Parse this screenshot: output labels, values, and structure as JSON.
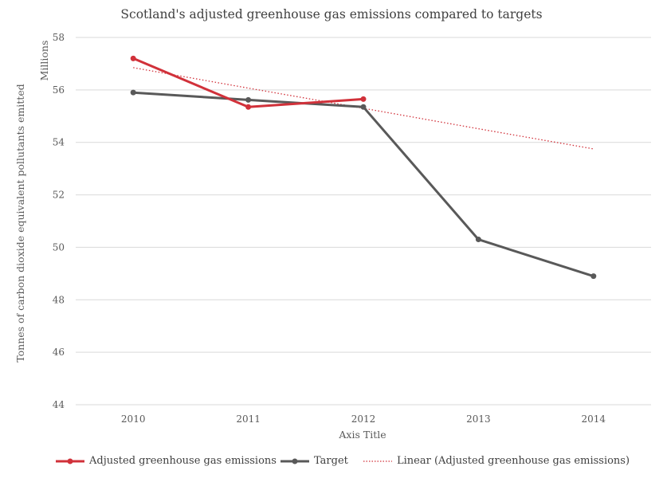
{
  "chart_data": {
    "type": "line",
    "title": "Scotland's adjusted greenhouse gas emissions compared to targets",
    "xlabel": "Axis Title",
    "ylabel": "Tonnes of carbon dioxide equivalent pollutants emitted",
    "y_units_label": "Millions",
    "categories": [
      "2010",
      "2011",
      "2012",
      "2013",
      "2014"
    ],
    "ylim": [
      44,
      58
    ],
    "y_ticks": [
      44,
      46,
      48,
      50,
      52,
      54,
      56,
      58
    ],
    "grid": true,
    "legend_position": "bottom",
    "series": [
      {
        "name": "Adjusted greenhouse gas emissions",
        "color": "#d1313a",
        "style": "solid",
        "values": [
          57.2,
          55.35,
          55.65,
          null,
          null
        ]
      },
      {
        "name": "Target",
        "color": "#595959",
        "style": "solid",
        "values": [
          55.9,
          55.62,
          55.35,
          50.3,
          48.9
        ]
      },
      {
        "name": "Linear (Adjusted greenhouse gas emissions)",
        "color": "#d1313a",
        "style": "dotted",
        "values": [
          56.85,
          56.07,
          55.3,
          54.52,
          53.75
        ]
      }
    ]
  }
}
